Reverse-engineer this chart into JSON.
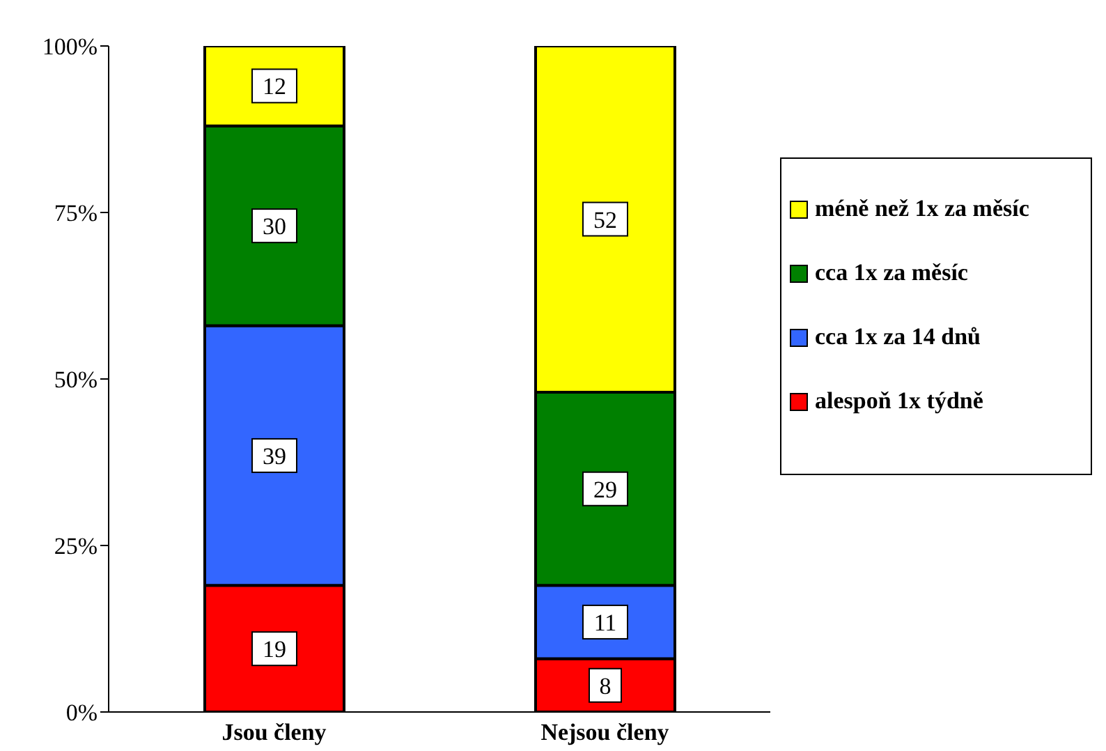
{
  "chart_data": {
    "type": "bar",
    "stacked": true,
    "categories": [
      "Jsou členy",
      "Nejsou členy"
    ],
    "series": [
      {
        "name": "alespoň 1x týdně",
        "color": "#ff0000",
        "values": [
          19,
          8
        ]
      },
      {
        "name": "cca 1x za 14 dnů",
        "color": "#3366ff",
        "values": [
          39,
          11
        ]
      },
      {
        "name": "cca 1x za měsíc",
        "color": "#008000",
        "values": [
          30,
          29
        ]
      },
      {
        "name": "méně než 1x za měsíc",
        "color": "#ffff00",
        "values": [
          12,
          52
        ]
      }
    ],
    "ylim": [
      0,
      100
    ],
    "yticks": [
      {
        "value": 0,
        "label": "0%"
      },
      {
        "value": 25,
        "label": "25%"
      },
      {
        "value": 50,
        "label": "50%"
      },
      {
        "value": 75,
        "label": "75%"
      },
      {
        "value": 100,
        "label": "100%"
      }
    ],
    "grid": false,
    "legend": "right",
    "data_labels": true
  }
}
